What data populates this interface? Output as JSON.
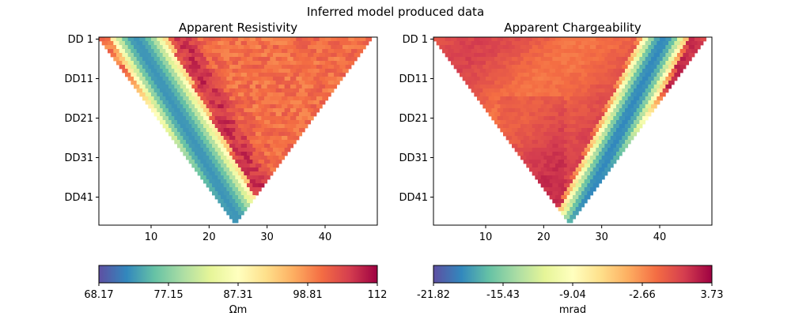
{
  "figure": {
    "suptitle": "Inferred model produced data"
  },
  "chart_data": [
    {
      "type": "heatmap",
      "title": "Apparent Resistivity",
      "xlabel": "",
      "ylabel": "",
      "xlim": [
        1,
        49
      ],
      "x_ticks": [
        10,
        20,
        30,
        40
      ],
      "y_tick_labels": [
        "DD 1",
        "DD11",
        "DD21",
        "DD31",
        "DD41"
      ],
      "y_tick_levels": [
        1,
        11,
        21,
        31,
        41
      ],
      "levels": 48,
      "grid": false,
      "colormap": "Spectral_r",
      "colorbar": {
        "label": "Ωm",
        "range": [
          68.17,
          112
        ],
        "tick_labels": [
          "68.17",
          "77.15",
          "87.31",
          "98.81",
          "112"
        ],
        "orientation": "horizontal"
      },
      "structure": "triangular pseudosection; low values (~70 Ωm) along a diagonal band from top-left toward the apex, high values (~105-112 Ωm) elsewhere"
    },
    {
      "type": "heatmap",
      "title": "Apparent Chargeability",
      "xlabel": "",
      "ylabel": "",
      "xlim": [
        1,
        49
      ],
      "x_ticks": [
        10,
        20,
        30,
        40
      ],
      "y_tick_labels": [
        "DD 1",
        "DD11",
        "DD21",
        "DD31",
        "DD41"
      ],
      "y_tick_levels": [
        1,
        11,
        21,
        31,
        41
      ],
      "levels": 48,
      "grid": false,
      "colormap": "Spectral_r",
      "colorbar": {
        "label": "mrad",
        "range": [
          -21.82,
          3.73
        ],
        "tick_labels": [
          "-21.82",
          "-15.43",
          "-9.04",
          "-2.66",
          "3.73"
        ],
        "orientation": "horizontal"
      },
      "structure": "triangular pseudosection; low values (~-21 mrad) along a diagonal band from top-right toward the apex, high values (~0-3.7 mrad) elsewhere"
    }
  ]
}
